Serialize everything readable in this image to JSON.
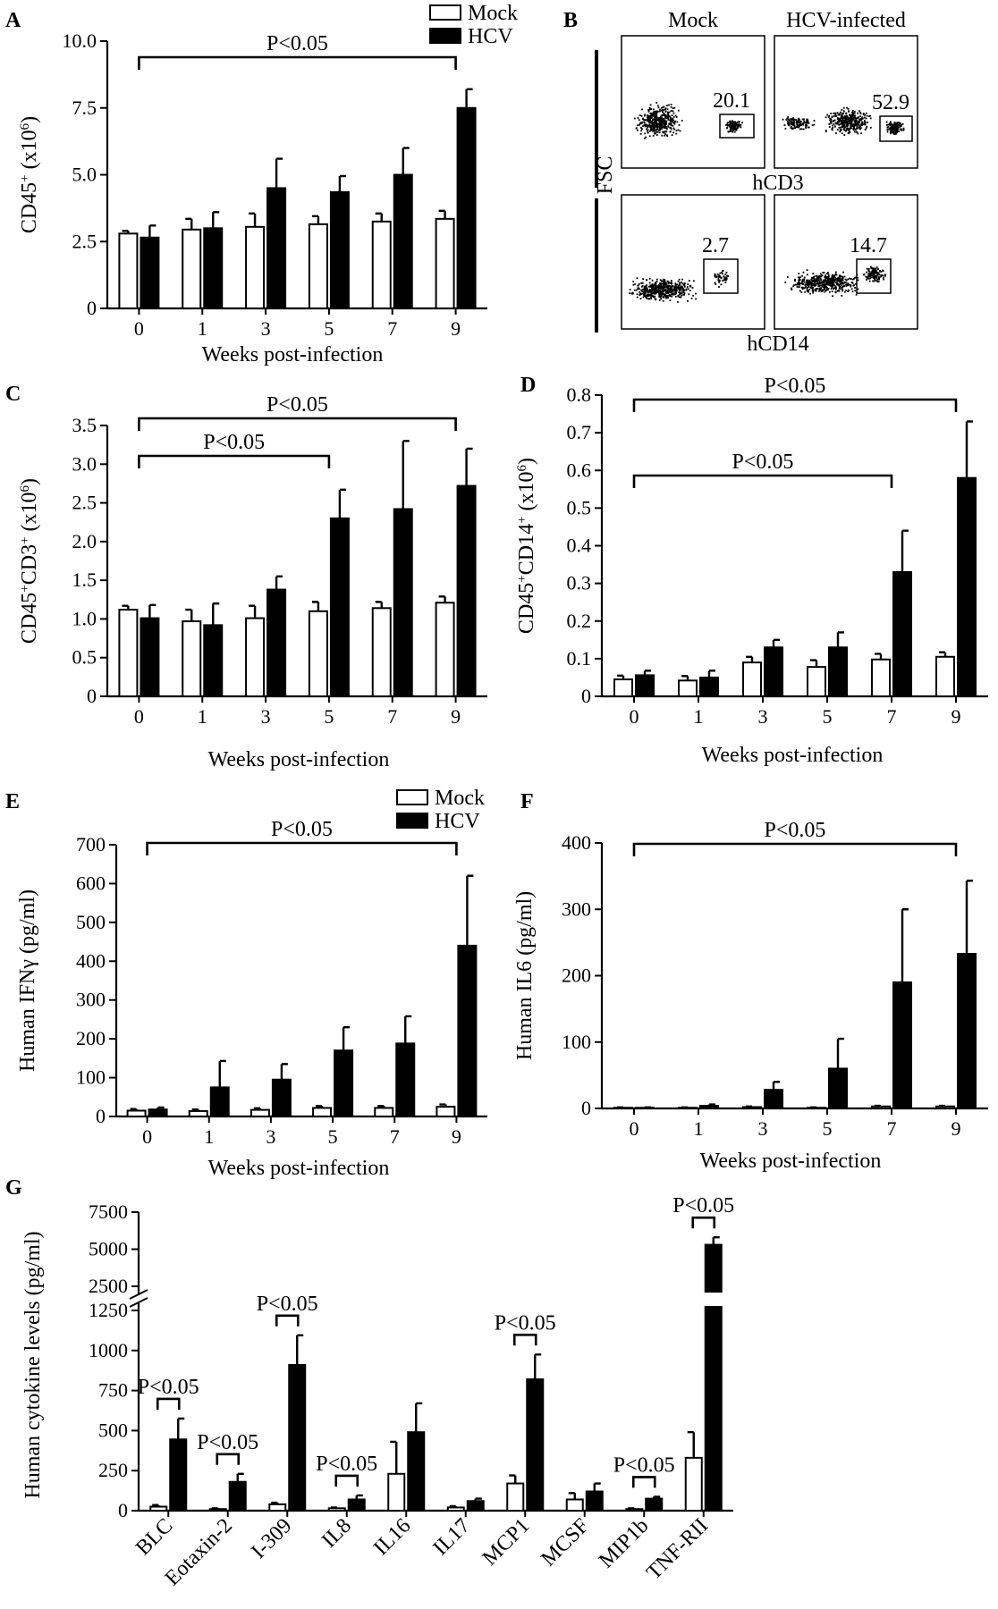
{
  "colors": {
    "mock": "#ffffff",
    "hcv": "#000000",
    "axis": "#000000"
  },
  "chart_data": [
    {
      "panel": "A",
      "type": "bar",
      "categories": [
        "0",
        "1",
        "3",
        "5",
        "7",
        "9"
      ],
      "series": [
        {
          "name": "Mock",
          "values": [
            2.8,
            2.95,
            3.05,
            3.15,
            3.25,
            3.35
          ],
          "errors": [
            0.1,
            0.4,
            0.5,
            0.3,
            0.3,
            0.3
          ]
        },
        {
          "name": "HCV",
          "values": [
            2.65,
            3.0,
            4.5,
            4.35,
            5.0,
            7.5
          ],
          "errors": [
            0.45,
            0.6,
            1.1,
            0.6,
            1.0,
            0.7
          ]
        }
      ],
      "xlabel": "Weeks post-infection",
      "ylabel": "CD45⁺ (x10⁶)",
      "yticks": [
        "0",
        "2.5",
        "5.0",
        "7.5",
        "10.0"
      ],
      "ylim": [
        0,
        10
      ],
      "legend": "top-right",
      "significance": [
        {
          "label": "P<0.05",
          "from": "0",
          "to": "9"
        }
      ]
    },
    {
      "panel": "B",
      "type": "scatter",
      "flow_plots": [
        {
          "title": "Mock",
          "value": "20.1"
        },
        {
          "title": "HCV-infected",
          "value": "52.9"
        },
        {
          "title": "",
          "value": "2.7"
        },
        {
          "title": "",
          "value": "14.7"
        }
      ],
      "ylabel": "FSC",
      "xlabels": [
        "hCD3",
        "hCD14"
      ]
    },
    {
      "panel": "C",
      "type": "bar",
      "categories": [
        "0",
        "1",
        "3",
        "5",
        "7",
        "9"
      ],
      "series": [
        {
          "name": "Mock",
          "values": [
            1.12,
            0.97,
            1.01,
            1.1,
            1.14,
            1.21
          ],
          "errors": [
            0.05,
            0.15,
            0.16,
            0.12,
            0.08,
            0.08
          ]
        },
        {
          "name": "HCV",
          "values": [
            1.01,
            0.92,
            1.38,
            2.3,
            2.42,
            2.72
          ],
          "errors": [
            0.17,
            0.28,
            0.17,
            0.37,
            0.88,
            0.48
          ]
        }
      ],
      "xlabel": "Weeks post-infection",
      "ylabel": "CD45⁺CD3⁺ (x10⁶)",
      "yticks": [
        "0",
        "0.5",
        "1.0",
        "1.5",
        "2.0",
        "2.5",
        "3.0",
        "3.5"
      ],
      "ylim": [
        0,
        3.5
      ],
      "significance": [
        {
          "label": "P<0.05",
          "from": "0",
          "to": "9"
        },
        {
          "label": "P<0.05",
          "from": "0",
          "to": "5"
        }
      ]
    },
    {
      "panel": "D",
      "type": "bar",
      "categories": [
        "0",
        "1",
        "3",
        "5",
        "7",
        "9"
      ],
      "series": [
        {
          "name": "Mock",
          "values": [
            0.045,
            0.042,
            0.09,
            0.078,
            0.098,
            0.105
          ],
          "errors": [
            0.01,
            0.012,
            0.015,
            0.018,
            0.015,
            0.012
          ]
        },
        {
          "name": "HCV",
          "values": [
            0.056,
            0.05,
            0.13,
            0.13,
            0.33,
            0.58
          ],
          "errors": [
            0.012,
            0.018,
            0.02,
            0.04,
            0.11,
            0.15
          ]
        }
      ],
      "xlabel": "Weeks post-infection",
      "ylabel": "CD45⁺CD14⁺ (x10⁶)",
      "yticks": [
        "0",
        "0.1",
        "0.2",
        "0.3",
        "0.4",
        "0.5",
        "0.6",
        "0.7",
        "0.8"
      ],
      "ylim": [
        0,
        0.8
      ],
      "significance": [
        {
          "label": "P<0.05",
          "from": "0",
          "to": "9"
        },
        {
          "label": "P<0.05",
          "from": "0",
          "to": "7"
        }
      ]
    },
    {
      "panel": "E",
      "type": "bar",
      "categories": [
        "0",
        "1",
        "3",
        "5",
        "7",
        "9"
      ],
      "series": [
        {
          "name": "Mock",
          "values": [
            15,
            14,
            17,
            22,
            22,
            25
          ],
          "errors": [
            4,
            4,
            4,
            5,
            5,
            6
          ]
        },
        {
          "name": "HCV",
          "values": [
            18,
            75,
            95,
            170,
            188,
            440
          ],
          "errors": [
            5,
            68,
            40,
            60,
            70,
            180
          ]
        }
      ],
      "xlabel": "Weeks post-infection",
      "ylabel": "Human IFNγ (pg/ml)",
      "yticks": [
        "0",
        "100",
        "200",
        "300",
        "400",
        "500",
        "600",
        "700"
      ],
      "ylim": [
        0,
        700
      ],
      "legend": "top-right",
      "significance": [
        {
          "label": "P<0.05",
          "from": "0",
          "to": "9"
        }
      ]
    },
    {
      "panel": "F",
      "type": "bar",
      "categories": [
        "0",
        "1",
        "3",
        "5",
        "7",
        "9"
      ],
      "series": [
        {
          "name": "Mock",
          "values": [
            1,
            1,
            2,
            1,
            3,
            3
          ],
          "errors": [
            0.5,
            0.5,
            1,
            0.5,
            1,
            1
          ]
        },
        {
          "name": "HCV",
          "values": [
            1,
            4,
            28,
            60,
            190,
            233
          ],
          "errors": [
            0.5,
            2,
            12,
            45,
            110,
            110
          ]
        }
      ],
      "xlabel": "Weeks post-infection",
      "ylabel": "Human IL6 (pg/ml)",
      "yticks": [
        "0",
        "100",
        "200",
        "300",
        "400"
      ],
      "ylim": [
        0,
        400
      ],
      "significance": [
        {
          "label": "P<0.05",
          "from": "0",
          "to": "9"
        }
      ]
    },
    {
      "panel": "G",
      "type": "bar",
      "categories": [
        "BLC",
        "Eotaxin-2",
        "I-309",
        "IL8",
        "IL16",
        "IL17",
        "MCP1",
        "MCSF",
        "MIP1b",
        "TNF-RII"
      ],
      "series": [
        {
          "name": "Mock",
          "values": [
            25,
            10,
            40,
            15,
            230,
            20,
            170,
            70,
            10,
            330
          ],
          "errors": [
            10,
            5,
            10,
            5,
            200,
            8,
            50,
            40,
            5,
            160
          ]
        },
        {
          "name": "HCV",
          "values": [
            445,
            180,
            910,
            70,
            490,
            60,
            820,
            120,
            75,
            5300
          ],
          "errors": [
            130,
            50,
            185,
            25,
            180,
            15,
            155,
            50,
            12,
            500
          ]
        }
      ],
      "ylabel": "Human cytokine levels (pg/ml)",
      "yticks_lower": [
        "0",
        "250",
        "500",
        "750",
        "1000",
        "1250"
      ],
      "yticks_upper": [
        "2500",
        "5000",
        "7500"
      ],
      "ylim": [
        0,
        7500
      ],
      "axis_break": [
        1250,
        2500
      ],
      "significance": [
        {
          "label": "P<0.05",
          "category": "BLC"
        },
        {
          "label": "P<0.05",
          "category": "Eotaxin-2"
        },
        {
          "label": "P<0.05",
          "category": "I-309"
        },
        {
          "label": "P<0.05",
          "category": "IL8"
        },
        {
          "label": "P<0.05",
          "category": "MCP1"
        },
        {
          "label": "P<0.05",
          "category": "MIP1b"
        },
        {
          "label": "P<0.05",
          "category": "TNF-RII"
        }
      ]
    }
  ]
}
